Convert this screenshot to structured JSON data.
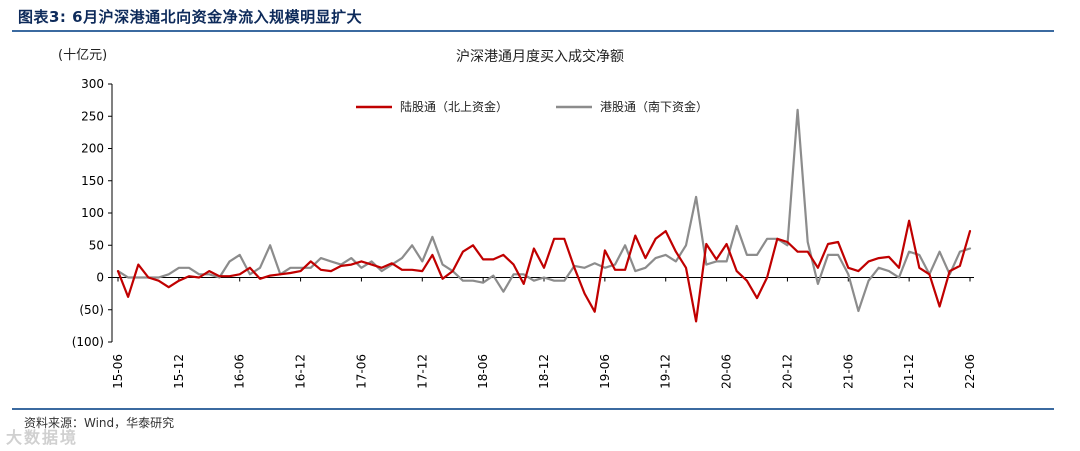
{
  "header": {
    "figure_title": "图表3:  6月沪深港通北向资金净流入规模明显扩大"
  },
  "footer": {
    "source": "资料来源：Wind，华泰研究",
    "watermark": "大数据境"
  },
  "colors": {
    "series_north": "#c00000",
    "series_south": "#8c8c8c",
    "rule": "#3b6aa0"
  },
  "chart_data": {
    "type": "line",
    "title": "沪深港通月度买入成交净额",
    "unit_label": "(十亿元)",
    "ylim": [
      -100,
      300
    ],
    "yticks": [
      300,
      250,
      200,
      150,
      100,
      50,
      0,
      -50,
      -100
    ],
    "ytick_labels": [
      "300",
      "250",
      "200",
      "150",
      "100",
      "50",
      "0",
      "(50)",
      "(100)"
    ],
    "xtick_labels": [
      "15-06",
      "15-12",
      "16-06",
      "16-12",
      "17-06",
      "17-12",
      "18-06",
      "18-12",
      "19-06",
      "19-12",
      "20-06",
      "20-12",
      "21-06",
      "21-12",
      "22-06"
    ],
    "x_start": "15-06",
    "x_end": "22-06",
    "grid": false,
    "legend_position": "top-center",
    "series": [
      {
        "name": "陆股通（北上资金）",
        "values": [
          10,
          -30,
          20,
          0,
          -5,
          -15,
          -5,
          2,
          0,
          10,
          2,
          2,
          5,
          15,
          -2,
          3,
          5,
          7,
          10,
          25,
          12,
          10,
          18,
          20,
          25,
          20,
          15,
          22,
          12,
          12,
          10,
          35,
          -2,
          10,
          40,
          50,
          28,
          28,
          35,
          20,
          -10,
          45,
          15,
          60,
          60,
          15,
          -25,
          -53,
          42,
          12,
          12,
          65,
          30,
          60,
          72,
          40,
          15,
          -68,
          52,
          28,
          52,
          10,
          -5,
          -32,
          0,
          60,
          55,
          40,
          40,
          15,
          52,
          55,
          15,
          10,
          25,
          30,
          32,
          15,
          88,
          15,
          5,
          -45,
          10,
          18,
          72
        ]
      },
      {
        "name": "港股通（南下资金）",
        "values": [
          10,
          0,
          0,
          0,
          0,
          5,
          15,
          15,
          5,
          5,
          0,
          25,
          35,
          5,
          15,
          50,
          5,
          15,
          15,
          15,
          30,
          25,
          20,
          30,
          15,
          25,
          10,
          20,
          30,
          50,
          25,
          63,
          20,
          10,
          -5,
          -5,
          -8,
          3,
          -22,
          5,
          5,
          -5,
          0,
          -5,
          -5,
          18,
          15,
          22,
          15,
          20,
          50,
          10,
          15,
          30,
          35,
          25,
          50,
          125,
          20,
          25,
          25,
          80,
          35,
          35,
          60,
          60,
          50,
          260,
          55,
          -10,
          35,
          35,
          5,
          -52,
          -5,
          15,
          10,
          0,
          40,
          35,
          5,
          40,
          5,
          40,
          45
        ]
      }
    ]
  }
}
